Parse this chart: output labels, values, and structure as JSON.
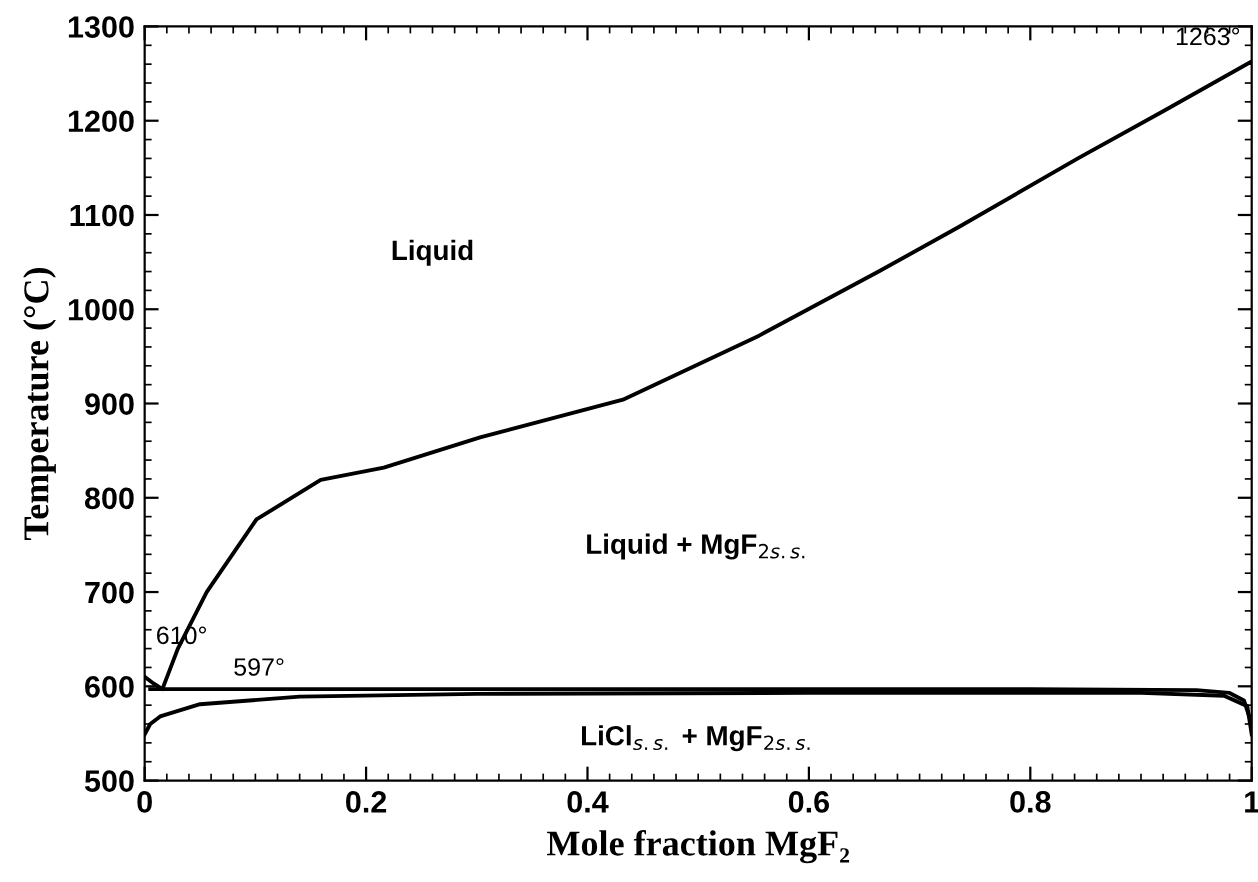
{
  "chart_data": {
    "type": "line",
    "xlabel": "Mole fraction MgF₂",
    "ylabel": "Temperature (°C)",
    "xlim": [
      0,
      1
    ],
    "xticks": [
      0,
      0.2,
      0.4,
      0.6,
      0.8,
      1
    ],
    "ylim": [
      500,
      1300
    ],
    "yticks": [
      500,
      600,
      700,
      800,
      900,
      1000,
      1100,
      1200,
      1300
    ],
    "grid": false,
    "legend": false,
    "series": [
      {
        "color": "#000000",
        "x": [
          0,
          0.008,
          0.016,
          0.03,
          0.056,
          0.101,
          0.159,
          0.216,
          0.303,
          0.432,
          0.555,
          0.663,
          0.735,
          0.843,
          0.92,
          1.0
        ],
        "values": [
          610,
          603,
          597,
          640,
          700,
          777,
          819,
          832,
          864,
          904,
          972,
          1040,
          1087,
          1160,
          1210,
          1263
        ]
      },
      {
        "color": "#000000",
        "x": [
          0.005,
          0.2,
          0.5,
          0.8,
          0.95,
          0.98,
          0.993,
          1.0
        ],
        "values": [
          597,
          597,
          597,
          597,
          596,
          593,
          585,
          560
        ]
      },
      {
        "color": "#000000",
        "x": [
          0.0,
          0.005,
          0.014,
          0.05,
          0.14,
          0.3,
          0.6,
          0.9,
          0.975,
          0.996,
          1.0
        ],
        "values": [
          549,
          560,
          568,
          581,
          589,
          592,
          593,
          593,
          590,
          579,
          549
        ]
      }
    ],
    "annotations": [
      {
        "text": "610°",
        "x": 0.0,
        "y": 610
      },
      {
        "text": "597°",
        "x": 0.08,
        "y": 597
      },
      {
        "text": "1263°",
        "x": 1.0,
        "y": 1263
      },
      "Liquid",
      "Liquid + MgF$_{2s.s.}$",
      "LiCl$_{s.s.}$ + MgF$_{2s.s.}$"
    ]
  }
}
